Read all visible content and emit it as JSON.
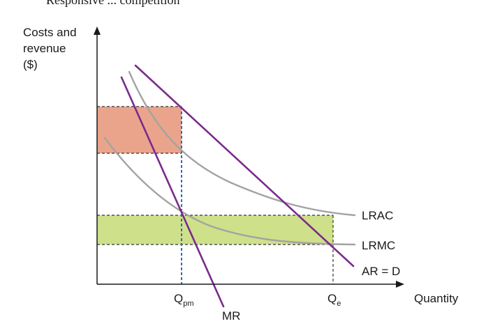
{
  "title_fragment": "Responsive ... competition",
  "y_axis_label": [
    "Costs and",
    "revenue",
    "($)"
  ],
  "x_axis_label": "Quantity",
  "curves": {
    "lrac": "LRAC",
    "lrmc": "LRMC",
    "ar_d": "AR = D",
    "mr": "MR"
  },
  "x_ticks": {
    "qpm_main": "Q",
    "qpm_sub": "pm",
    "qe_main": "Q",
    "qe_sub": "e"
  },
  "colors": {
    "supernormal_profit": "#eaa48c",
    "cost_saving_area": "#cfe08a",
    "cost_curves": "#a3a3a3",
    "revenue_curves": "#7a2a8c",
    "qpm_guide": "#2a6fb5"
  }
}
